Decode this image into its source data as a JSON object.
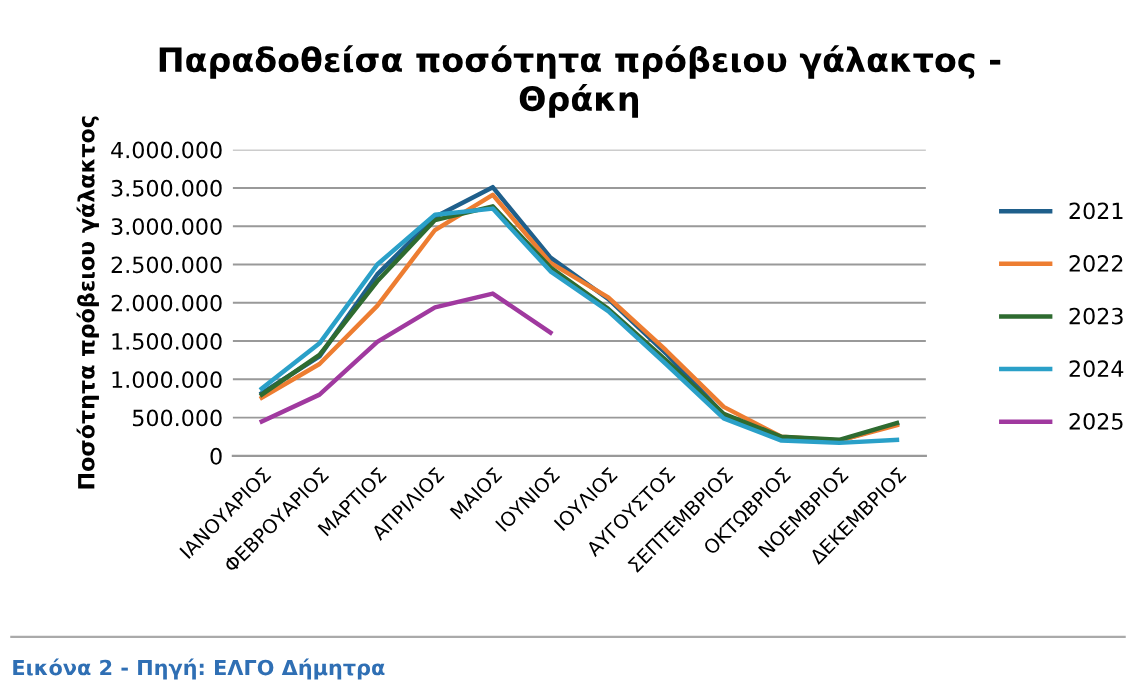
{
  "chart_data": {
    "type": "line",
    "title": "Παραδοθείσα ποσότητα πρόβειου γάλακτος -\nΘράκη",
    "ylabel": "Ποσότητα πρόβειου γάλακτος",
    "categories": [
      "ΙΑΝΟΥΑΡΙΟΣ",
      "ΦΕΒΡΟΥΑΡΙΟΣ",
      "ΜΑΡΤΙΟΣ",
      "ΑΠΡΙΛΙΟΣ",
      "ΜΑΙΟΣ",
      "ΙΟΥΝΙΟΣ",
      "ΙΟΥΛΙΟΣ",
      "ΑΥΓΟΥΣΤΟΣ",
      "ΣΕΠΤΕΜΒΡΙΟΣ",
      "ΟΚΤΩΒΡΙΟΣ",
      "ΝΟΕΜΒΡΙΟΣ",
      "ΔΕΚΕΜΒΡΙΟΣ"
    ],
    "series": [
      {
        "name": "2021",
        "color": "#1f5f8b",
        "values": [
          820000,
          1300000,
          2370000,
          3120000,
          3510000,
          2590000,
          2050000,
          1340000,
          540000,
          240000,
          200000,
          420000
        ]
      },
      {
        "name": "2022",
        "color": "#ed7d31",
        "values": [
          760000,
          1200000,
          1960000,
          2950000,
          3410000,
          2520000,
          2070000,
          1380000,
          640000,
          250000,
          200000,
          400000
        ]
      },
      {
        "name": "2023",
        "color": "#2e6b30",
        "values": [
          800000,
          1320000,
          2280000,
          3080000,
          3260000,
          2460000,
          1920000,
          1250000,
          550000,
          250000,
          210000,
          430000
        ]
      },
      {
        "name": "2024",
        "color": "#2aa0c8",
        "values": [
          880000,
          1470000,
          2500000,
          3150000,
          3230000,
          2410000,
          1890000,
          1200000,
          490000,
          200000,
          170000,
          210000
        ]
      },
      {
        "name": "2025",
        "color": "#a0399f",
        "values": [
          450000,
          800000,
          1490000,
          1940000,
          2120000,
          1610000,
          null,
          null,
          null,
          null,
          null,
          null
        ]
      }
    ],
    "ylim": [
      0,
      4000000
    ],
    "yticks": [
      0,
      {
        "value": 500000,
        "label": "500.000"
      },
      {
        "value": 1000000,
        "label": "1.000.000"
      },
      {
        "value": 1500000,
        "label": "1.500.000"
      },
      {
        "value": 2000000,
        "label": "2.000.000"
      },
      {
        "value": 2500000,
        "label": "2.500.000"
      },
      {
        "value": 3000000,
        "label": "3.000.000"
      },
      {
        "value": 3500000,
        "label": "3.500.000"
      },
      {
        "value": 4000000,
        "label": "4.000.000"
      }
    ],
    "grid": "y",
    "legend": "right",
    "marker": "none",
    "line_style": "solid",
    "annotations": [
      "Εικόνα 2 - Πηγή: ΕΛΓΟ Δήμητρα"
    ]
  }
}
